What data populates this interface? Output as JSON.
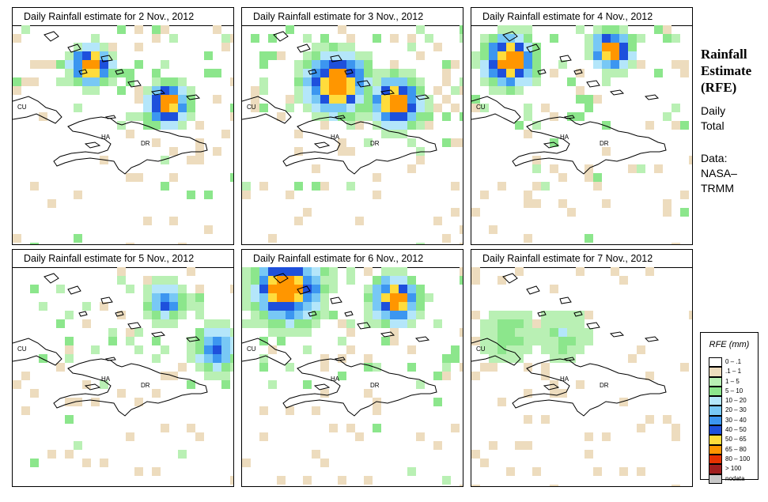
{
  "panels": [
    {
      "title": "Daily Rainfall estimate for  2 Nov., 2012",
      "seed": 11,
      "intensity": 2
    },
    {
      "title": "Daily Rainfall estimate for  3 Nov., 2012",
      "seed": 23,
      "intensity": 2
    },
    {
      "title": "Daily Rainfall estimate for  4 Nov., 2012",
      "seed": 37,
      "intensity": 2
    },
    {
      "title": "Daily Rainfall estimate for  5 Nov., 2012",
      "seed": 41,
      "intensity": 1
    },
    {
      "title": "Daily Rainfall estimate for  6 Nov., 2012",
      "seed": 53,
      "intensity": 2
    },
    {
      "title": "Daily Rainfall estimate for  7 Nov., 2012",
      "seed": 67,
      "intensity": 0
    }
  ],
  "map_labels": {
    "cuba": "CU",
    "haiti": "HA",
    "dominican_republic": "DR"
  },
  "side_info": {
    "title_line1": "Rainfall",
    "title_line2": "Estimate",
    "title_line3": "(RFE)",
    "daily": "Daily",
    "total": "Total",
    "data_label": "Data:",
    "source_line1": "NASA–",
    "source_line2": "TRMM"
  },
  "legend": {
    "title": "RFE (mm)",
    "items": [
      {
        "label": "0 – .1",
        "color": "#ffffff"
      },
      {
        "label": ".1 – 1",
        "color": "#eddcbe"
      },
      {
        "label": "1 – 5",
        "color": "#b9f0b4"
      },
      {
        "label": "5 – 10",
        "color": "#8ce68c"
      },
      {
        "label": "10 – 20",
        "color": "#b4e6fa"
      },
      {
        "label": "20 – 30",
        "color": "#78c8f5"
      },
      {
        "label": "30 – 40",
        "color": "#3c96f0"
      },
      {
        "label": "40 – 50",
        "color": "#1e50dc"
      },
      {
        "label": "50 – 65",
        "color": "#ffdc3c"
      },
      {
        "label": "65 – 80",
        "color": "#ff9600"
      },
      {
        "label": "80 – 100",
        "color": "#e63200"
      },
      {
        "label": "> 100",
        "color": "#a01e1e"
      },
      {
        "label": "nodata",
        "color": "#c8c8c8"
      }
    ]
  }
}
